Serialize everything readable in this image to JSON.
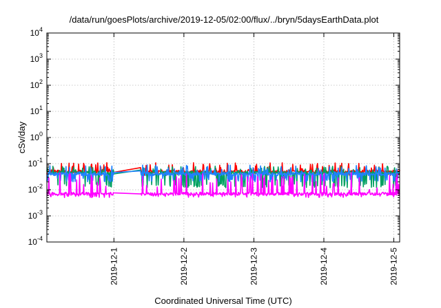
{
  "chart_data": {
    "type": "line",
    "title": "/data/run/goesPlots/archive/2019-12-05/02:00/flux/../bryn/5daysEarthData.plot",
    "xlabel": "Coordinated Universal Time (UTC)",
    "ylabel": "cSv/day",
    "yscale": "log",
    "ylim": [
      0.0001,
      10000
    ],
    "xlim": [
      "2019-11-30T01:00",
      "2019-12-05T02:00"
    ],
    "grid": true,
    "y_ticks": [
      {
        "base": "10",
        "exp": "-4",
        "value": 0.0001
      },
      {
        "base": "10",
        "exp": "-3",
        "value": 0.001
      },
      {
        "base": "10",
        "exp": "-2",
        "value": 0.01
      },
      {
        "base": "10",
        "exp": "-1",
        "value": 0.1
      },
      {
        "base": "10",
        "exp": "0",
        "value": 1
      },
      {
        "base": "10",
        "exp": "1",
        "value": 10
      },
      {
        "base": "10",
        "exp": "2",
        "value": 100
      },
      {
        "base": "10",
        "exp": "3",
        "value": 1000
      },
      {
        "base": "10",
        "exp": "4",
        "value": 10000
      }
    ],
    "x_ticks": [
      {
        "label": "2019-12-1",
        "value": "2019-12-01T00:00"
      },
      {
        "label": "2019-12-2",
        "value": "2019-12-02T00:00"
      },
      {
        "label": "2019-12-3",
        "value": "2019-12-03T00:00"
      },
      {
        "label": "2019-12-4",
        "value": "2019-12-04T00:00"
      },
      {
        "label": "2019-12-5",
        "value": "2019-12-05T00:00"
      }
    ],
    "data_gaps": [
      {
        "from": "2019-11-31T00:00",
        "to": "2019-12-01T09:00"
      },
      {
        "from": "2019-12-01T15:30",
        "to": "2019-12-01T15:45"
      }
    ],
    "series": [
      {
        "color": "#ff0000",
        "baseline": 0.05,
        "spike_max": 0.11,
        "dip_min": 0.035
      },
      {
        "color": "#00a060",
        "baseline": 0.045,
        "spike_max": 0.08,
        "dip_min": 0.012
      },
      {
        "color": "#2080ff",
        "baseline": 0.04,
        "spike_max": 0.09,
        "dip_min": 0.02
      },
      {
        "color": "#ff00ff",
        "baseline": 0.007,
        "spike_max": 0.045,
        "dip_min": 0.005
      }
    ]
  }
}
